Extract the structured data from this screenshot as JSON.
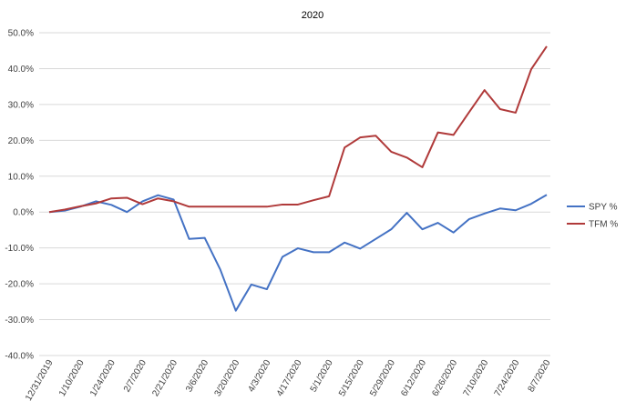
{
  "chart_data": {
    "type": "line",
    "title": "2020",
    "xlabel": "",
    "ylabel": "",
    "ylim": [
      -0.4,
      0.5
    ],
    "y_ticks": [
      -0.4,
      -0.3,
      -0.2,
      -0.1,
      0,
      0.1,
      0.2,
      0.3,
      0.4,
      0.5
    ],
    "y_tick_labels": [
      "-40.0%",
      "-30.0%",
      "-20.0%",
      "-10.0%",
      "0.0%",
      "10.0%",
      "20.0%",
      "30.0%",
      "40.0%",
      "50.0%"
    ],
    "x_tick_labels": [
      "12/31/2019",
      "1/10/2020",
      "1/24/2020",
      "2/7/2020",
      "2/21/2020",
      "3/6/2020",
      "3/20/2020",
      "4/3/2020",
      "4/17/2020",
      "5/1/2020",
      "5/15/2020",
      "5/29/2020",
      "6/12/2020",
      "6/26/2020",
      "7/10/2020",
      "7/24/2020",
      "8/7/2020"
    ],
    "grid": true,
    "legend_position": "right",
    "series": [
      {
        "name": "SPY %",
        "color": "#4472C4",
        "values": [
          0.0,
          0.004,
          0.015,
          0.03,
          0.02,
          0.0,
          0.03,
          0.047,
          0.035,
          -0.075,
          -0.072,
          -0.16,
          -0.275,
          -0.202,
          -0.215,
          -0.125,
          -0.101,
          -0.112,
          -0.112,
          -0.085,
          -0.102,
          -0.075,
          -0.048,
          -0.002,
          -0.048,
          -0.03,
          -0.057,
          -0.02,
          -0.004,
          0.01,
          0.005,
          0.023,
          0.048
        ]
      },
      {
        "name": "TFM %",
        "color": "#B03A3A",
        "values": [
          0.0,
          0.007,
          0.016,
          0.024,
          0.038,
          0.04,
          0.022,
          0.038,
          0.03,
          0.015,
          0.015,
          0.015,
          0.015,
          0.015,
          0.015,
          0.021,
          0.021,
          0.033,
          0.044,
          0.18,
          0.208,
          0.213,
          0.168,
          0.152,
          0.125,
          0.222,
          0.215,
          0.278,
          0.34,
          0.287,
          0.277,
          0.398,
          0.462
        ]
      }
    ]
  }
}
